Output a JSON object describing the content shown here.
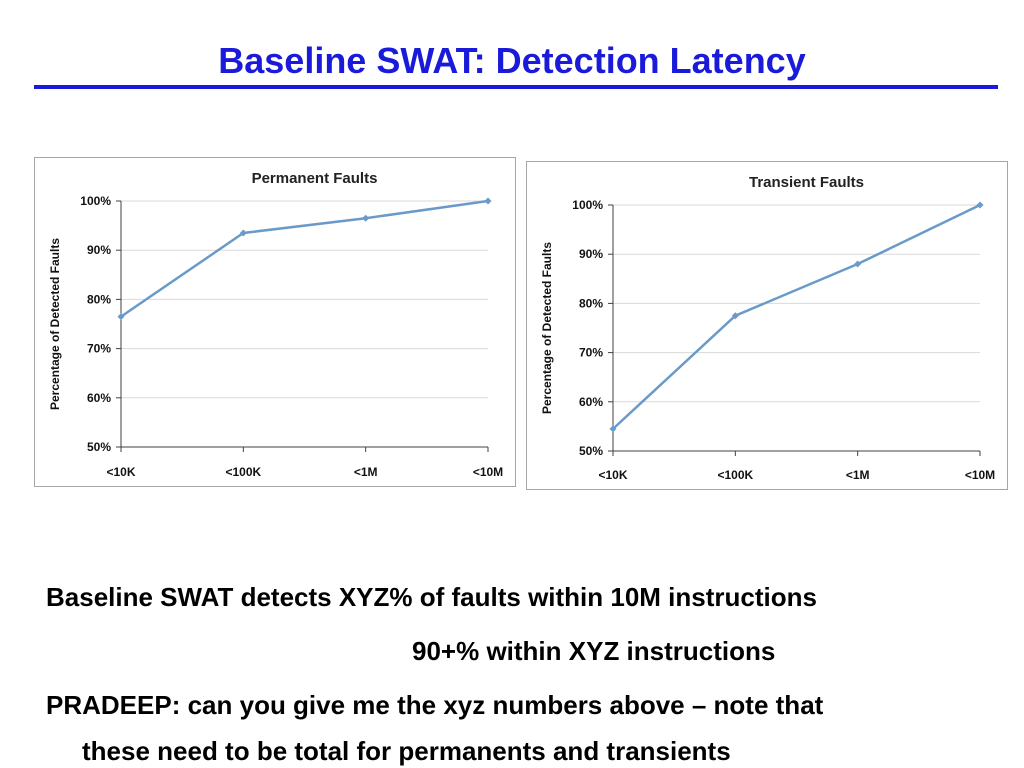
{
  "slide": {
    "title": "Baseline SWAT: Detection Latency",
    "title_color": "#1a1adb",
    "lines": [
      "Baseline SWAT detects XYZ% of faults within 10M instructions",
      "90+%  within XYZ instructions",
      "PRADEEP: can you give me the xyz numbers above – note that",
      "these need to be total for permanents and transients"
    ]
  },
  "chart_data": [
    {
      "type": "line",
      "title": "Permanent Faults",
      "xlabel": "",
      "ylabel": "Percentage of Detected Faults",
      "categories": [
        "<10K",
        "<100K",
        "<1M",
        "<10M"
      ],
      "series": [
        {
          "values": [
            76.5,
            93.5,
            96.5,
            100
          ],
          "color": "#6a9ac9"
        }
      ],
      "ylim": [
        50,
        100
      ],
      "yticks": [
        "50%",
        "60%",
        "70%",
        "80%",
        "90%",
        "100%"
      ],
      "grid": true,
      "legend": "none"
    },
    {
      "type": "line",
      "title": "Transient Faults",
      "xlabel": "",
      "ylabel": "Percentage of Detected Faults",
      "categories": [
        "<10K",
        "<100K",
        "<1M",
        "<10M"
      ],
      "series": [
        {
          "values": [
            54.5,
            77.5,
            88,
            100
          ],
          "color": "#6a9ac9"
        }
      ],
      "ylim": [
        50,
        100
      ],
      "yticks": [
        "50%",
        "60%",
        "70%",
        "80%",
        "90%",
        "100%"
      ],
      "grid": true,
      "legend": "none"
    }
  ]
}
